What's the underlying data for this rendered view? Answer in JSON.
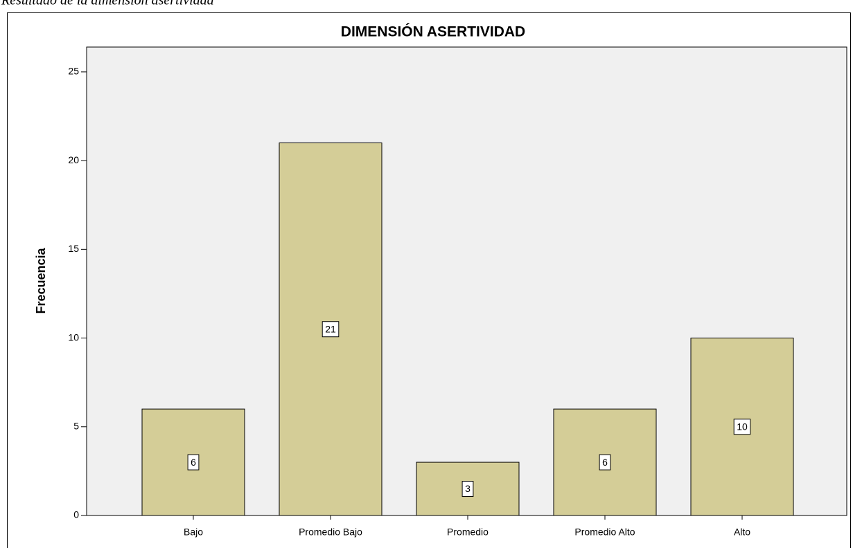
{
  "chart_data": {
    "type": "bar",
    "caption": "Resultado de la dimensión asertividad",
    "title": "DIMENSIÓN ASERTIVIDAD",
    "y_label": "Frecuencia",
    "categories": [
      "Bajo",
      "Promedio Bajo",
      "Promedio",
      "Promedio Alto",
      "Alto"
    ],
    "values": [
      6,
      21,
      3,
      6,
      10
    ],
    "color": "#d4cd97",
    "ylim": [
      0,
      26.4
    ],
    "yticks": [
      0,
      5,
      10,
      15,
      20,
      25
    ],
    "grid": false
  }
}
